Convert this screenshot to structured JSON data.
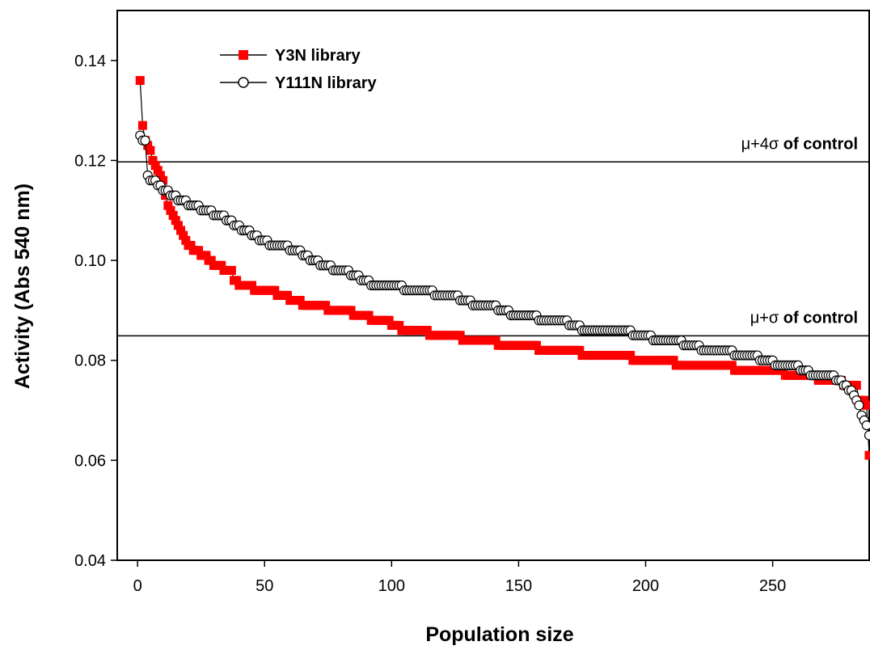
{
  "chart_data": {
    "type": "line",
    "xlabel": "Population size",
    "ylabel": "Activity (Abs 540 nm)",
    "xlim": [
      -8,
      288
    ],
    "ylim": [
      0.04,
      0.15
    ],
    "xticks": [
      0,
      50,
      100,
      150,
      200,
      250
    ],
    "yticks": [
      0.04,
      0.06,
      0.08,
      0.1,
      0.12,
      0.14
    ],
    "ytick_labels": [
      "0.04",
      "0.06",
      "0.08",
      "0.10",
      "0.12",
      "0.14"
    ],
    "grid": false,
    "legend_position": "top-left",
    "reference_lines": [
      {
        "y": 0.1197,
        "label_main": "μ+4σ",
        "label_suffix": " of control"
      },
      {
        "y": 0.0849,
        "label_main": "μ+σ",
        "label_suffix": " of control"
      }
    ],
    "series": [
      {
        "name": "Y3N library",
        "marker": "square",
        "color": "#ff0000",
        "points": [
          [
            1,
            0.136
          ],
          [
            2,
            0.127
          ],
          [
            3,
            0.124
          ],
          [
            4,
            0.123
          ],
          [
            5,
            0.122
          ],
          [
            6,
            0.12
          ],
          [
            7,
            0.119
          ],
          [
            8,
            0.118
          ],
          [
            9,
            0.117
          ],
          [
            10,
            0.116
          ],
          [
            11,
            0.113
          ],
          [
            12,
            0.111
          ],
          [
            13,
            0.11
          ],
          [
            14,
            0.109
          ],
          [
            15,
            0.108
          ],
          [
            16,
            0.107
          ],
          [
            17,
            0.106
          ],
          [
            18,
            0.105
          ],
          [
            19,
            0.104
          ],
          [
            20,
            0.103
          ],
          [
            22,
            0.102
          ],
          [
            25,
            0.101
          ],
          [
            28,
            0.1
          ],
          [
            30,
            0.099
          ],
          [
            34,
            0.098
          ],
          [
            38,
            0.096
          ],
          [
            40,
            0.095
          ],
          [
            46,
            0.094
          ],
          [
            55,
            0.093
          ],
          [
            60,
            0.092
          ],
          [
            65,
            0.091
          ],
          [
            75,
            0.09
          ],
          [
            85,
            0.089
          ],
          [
            92,
            0.088
          ],
          [
            100,
            0.087
          ],
          [
            104,
            0.086
          ],
          [
            115,
            0.085
          ],
          [
            128,
            0.084
          ],
          [
            142,
            0.083
          ],
          [
            158,
            0.082
          ],
          [
            175,
            0.081
          ],
          [
            195,
            0.08
          ],
          [
            212,
            0.079
          ],
          [
            235,
            0.078
          ],
          [
            255,
            0.077
          ],
          [
            268,
            0.076
          ],
          [
            278,
            0.075
          ],
          [
            284,
            0.072
          ],
          [
            287,
            0.071
          ],
          [
            288,
            0.061
          ]
        ]
      },
      {
        "name": "Y111N library",
        "marker": "circle",
        "color": "#000000",
        "points": [
          [
            1,
            0.125
          ],
          [
            2,
            0.124
          ],
          [
            3,
            0.124
          ],
          [
            4,
            0.117
          ],
          [
            5,
            0.116
          ],
          [
            8,
            0.115
          ],
          [
            10,
            0.114
          ],
          [
            13,
            0.113
          ],
          [
            16,
            0.112
          ],
          [
            20,
            0.111
          ],
          [
            25,
            0.11
          ],
          [
            30,
            0.109
          ],
          [
            35,
            0.108
          ],
          [
            38,
            0.107
          ],
          [
            41,
            0.106
          ],
          [
            45,
            0.105
          ],
          [
            48,
            0.104
          ],
          [
            52,
            0.103
          ],
          [
            60,
            0.102
          ],
          [
            65,
            0.101
          ],
          [
            68,
            0.1
          ],
          [
            72,
            0.099
          ],
          [
            77,
            0.098
          ],
          [
            84,
            0.097
          ],
          [
            88,
            0.096
          ],
          [
            92,
            0.095
          ],
          [
            105,
            0.094
          ],
          [
            117,
            0.093
          ],
          [
            127,
            0.092
          ],
          [
            132,
            0.091
          ],
          [
            142,
            0.09
          ],
          [
            147,
            0.089
          ],
          [
            158,
            0.088
          ],
          [
            170,
            0.087
          ],
          [
            175,
            0.086
          ],
          [
            195,
            0.085
          ],
          [
            203,
            0.084
          ],
          [
            215,
            0.083
          ],
          [
            222,
            0.082
          ],
          [
            235,
            0.081
          ],
          [
            245,
            0.08
          ],
          [
            251,
            0.079
          ],
          [
            261,
            0.078
          ],
          [
            265,
            0.077
          ],
          [
            275,
            0.076
          ],
          [
            278,
            0.075
          ],
          [
            280,
            0.074
          ],
          [
            282,
            0.073
          ],
          [
            283,
            0.072
          ],
          [
            284,
            0.071
          ],
          [
            285,
            0.069
          ],
          [
            286,
            0.068
          ],
          [
            287,
            0.067
          ],
          [
            288,
            0.065
          ]
        ]
      }
    ]
  }
}
